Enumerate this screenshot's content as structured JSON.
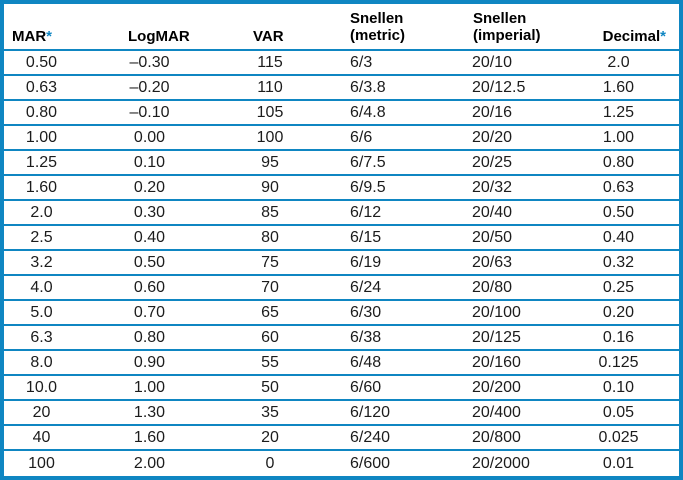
{
  "colors": {
    "border_blue": "#0f86c2",
    "asterisk_blue": "#0f86c2",
    "header_text": "#000000",
    "body_text": "#1c1c1c",
    "background": "#ffffff"
  },
  "chart_data": {
    "type": "table",
    "columns": [
      {
        "label": "MAR",
        "asterisk": "*"
      },
      {
        "label": "LogMAR"
      },
      {
        "label": "VAR"
      },
      {
        "label": "Snellen",
        "label2": "(metric)"
      },
      {
        "label": "Snellen",
        "label2": "(imperial)"
      },
      {
        "label": "Decimal",
        "asterisk": "*"
      }
    ],
    "rows": [
      [
        "0.50",
        "–0.30",
        "115",
        "6/3",
        "20/10",
        "2.0"
      ],
      [
        "0.63",
        "–0.20",
        "110",
        "6/3.8",
        "20/12.5",
        "1.60"
      ],
      [
        "0.80",
        "–0.10",
        "105",
        "6/4.8",
        "20/16",
        "1.25"
      ],
      [
        "1.00",
        "0.00",
        "100",
        "6/6",
        "20/20",
        "1.00"
      ],
      [
        "1.25",
        "0.10",
        "95",
        "6/7.5",
        "20/25",
        "0.80"
      ],
      [
        "1.60",
        "0.20",
        "90",
        "6/9.5",
        "20/32",
        "0.63"
      ],
      [
        "2.0",
        "0.30",
        "85",
        "6/12",
        "20/40",
        "0.50"
      ],
      [
        "2.5",
        "0.40",
        "80",
        "6/15",
        "20/50",
        "0.40"
      ],
      [
        "3.2",
        "0.50",
        "75",
        "6/19",
        "20/63",
        "0.32"
      ],
      [
        "4.0",
        "0.60",
        "70",
        "6/24",
        "20/80",
        "0.25"
      ],
      [
        "5.0",
        "0.70",
        "65",
        "6/30",
        "20/100",
        "0.20"
      ],
      [
        "6.3",
        "0.80",
        "60",
        "6/38",
        "20/125",
        "0.16"
      ],
      [
        "8.0",
        "0.90",
        "55",
        "6/48",
        "20/160",
        "0.125"
      ],
      [
        "10.0",
        "1.00",
        "50",
        "6/60",
        "20/200",
        "0.10"
      ],
      [
        "20",
        "1.30",
        "35",
        "6/120",
        "20/400",
        "0.05"
      ],
      [
        "40",
        "1.60",
        "20",
        "6/240",
        "20/800",
        "0.025"
      ],
      [
        "100",
        "2.00",
        "0",
        "6/600",
        "20/2000",
        "0.01"
      ]
    ]
  }
}
